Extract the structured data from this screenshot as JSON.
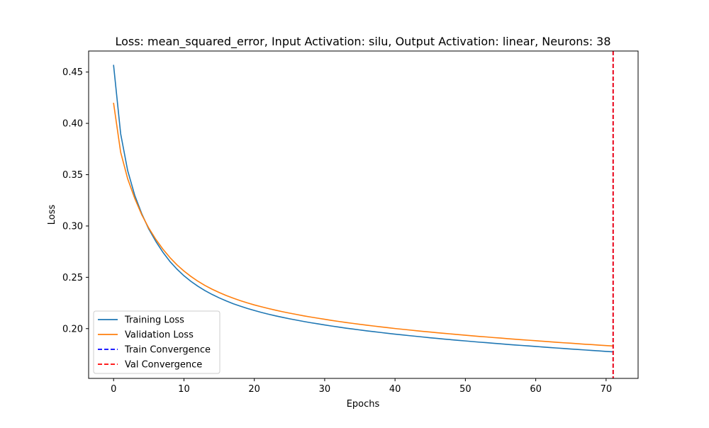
{
  "chart_data": {
    "type": "line",
    "title": "Loss: mean_squared_error, Input Activation: silu, Output Activation: linear, Neurons: 38",
    "xlabel": "Epochs",
    "ylabel": "Loss",
    "xlim": [
      -3.55,
      74.55
    ],
    "ylim": [
      0.1515,
      0.4705
    ],
    "xticks": [
      0,
      10,
      20,
      30,
      40,
      50,
      60,
      70
    ],
    "xtick_labels": [
      "0",
      "10",
      "20",
      "30",
      "40",
      "50",
      "60",
      "70"
    ],
    "yticks": [
      0.2,
      0.25,
      0.3,
      0.35,
      0.4,
      0.45
    ],
    "ytick_labels": [
      "0.20",
      "0.25",
      "0.30",
      "0.35",
      "0.40",
      "0.45"
    ],
    "grid": false,
    "legend_position": "lower-left",
    "series": [
      {
        "name": "Training Loss",
        "color": "#1f77b4",
        "style": "solid",
        "x": [
          0,
          1,
          2,
          3,
          4,
          5,
          6,
          7,
          8,
          9,
          10,
          11,
          12,
          13,
          14,
          15,
          16,
          17,
          18,
          19,
          20,
          21,
          22,
          23,
          24,
          25,
          26,
          27,
          28,
          29,
          30,
          31,
          32,
          33,
          34,
          35,
          36,
          37,
          38,
          39,
          40,
          41,
          42,
          43,
          44,
          45,
          46,
          47,
          48,
          49,
          50,
          51,
          52,
          53,
          54,
          55,
          56,
          57,
          58,
          59,
          60,
          61,
          62,
          63,
          64,
          65,
          66,
          67,
          68,
          69,
          70,
          71
        ],
        "y": [
          0.4565,
          0.39,
          0.354,
          0.33,
          0.312,
          0.297,
          0.285,
          0.2745,
          0.2655,
          0.258,
          0.2515,
          0.246,
          0.2412,
          0.237,
          0.2333,
          0.23,
          0.227,
          0.2243,
          0.2219,
          0.2197,
          0.2177,
          0.2158,
          0.2141,
          0.2125,
          0.211,
          0.2096,
          0.2083,
          0.207,
          0.2058,
          0.2047,
          0.2036,
          0.2025,
          0.2015,
          0.2005,
          0.1996,
          0.1987,
          0.1978,
          0.197,
          0.1962,
          0.1954,
          0.1946,
          0.1939,
          0.1932,
          0.1925,
          0.1918,
          0.1911,
          0.1905,
          0.1898,
          0.1892,
          0.1886,
          0.188,
          0.1874,
          0.1868,
          0.1863,
          0.1857,
          0.1852,
          0.1846,
          0.1841,
          0.1836,
          0.1831,
          0.1826,
          0.1821,
          0.1816,
          0.1811,
          0.1806,
          0.1801,
          0.1797,
          0.1792,
          0.1787,
          0.1783,
          0.1778,
          0.1774
        ]
      },
      {
        "name": "Validation Loss",
        "color": "#ff7f0e",
        "style": "solid",
        "x": [
          0,
          1,
          2,
          3,
          4,
          5,
          6,
          7,
          8,
          9,
          10,
          11,
          12,
          13,
          14,
          15,
          16,
          17,
          18,
          19,
          20,
          21,
          22,
          23,
          24,
          25,
          26,
          27,
          28,
          29,
          30,
          31,
          32,
          33,
          34,
          35,
          36,
          37,
          38,
          39,
          40,
          41,
          42,
          43,
          44,
          45,
          46,
          47,
          48,
          49,
          50,
          51,
          52,
          53,
          54,
          55,
          56,
          57,
          58,
          59,
          60,
          61,
          62,
          63,
          64,
          65,
          66,
          67,
          68,
          69,
          70,
          71
        ],
        "y": [
          0.4195,
          0.372,
          0.346,
          0.327,
          0.311,
          0.298,
          0.287,
          0.2775,
          0.2693,
          0.2622,
          0.2561,
          0.2508,
          0.2461,
          0.242,
          0.2384,
          0.2352,
          0.2323,
          0.2297,
          0.2273,
          0.2251,
          0.2231,
          0.2213,
          0.2196,
          0.218,
          0.2165,
          0.2151,
          0.2138,
          0.2125,
          0.2113,
          0.2102,
          0.2091,
          0.208,
          0.207,
          0.206,
          0.2051,
          0.2042,
          0.2033,
          0.2025,
          0.2017,
          0.2009,
          0.2001,
          0.1994,
          0.1987,
          0.198,
          0.1973,
          0.1967,
          0.196,
          0.1954,
          0.1948,
          0.1942,
          0.1936,
          0.193,
          0.1924,
          0.1919,
          0.1913,
          0.1908,
          0.1902,
          0.1897,
          0.1892,
          0.1887,
          0.1882,
          0.1877,
          0.1872,
          0.1867,
          0.1862,
          0.1858,
          0.1853,
          0.1848,
          0.1844,
          0.1839,
          0.1835,
          0.1831
        ]
      }
    ],
    "vlines": [
      {
        "name": "Train Convergence",
        "color": "#0000ff",
        "style": "dashed",
        "x": 71
      },
      {
        "name": "Val Convergence",
        "color": "#ff0000",
        "style": "dashed",
        "x": 71
      }
    ],
    "legend": [
      {
        "label": "Training Loss",
        "color": "#1f77b4",
        "style": "solid"
      },
      {
        "label": "Validation Loss",
        "color": "#ff7f0e",
        "style": "solid"
      },
      {
        "label": "Train Convergence",
        "color": "#0000ff",
        "style": "dashed"
      },
      {
        "label": "Val Convergence",
        "color": "#ff0000",
        "style": "dashed"
      }
    ]
  }
}
